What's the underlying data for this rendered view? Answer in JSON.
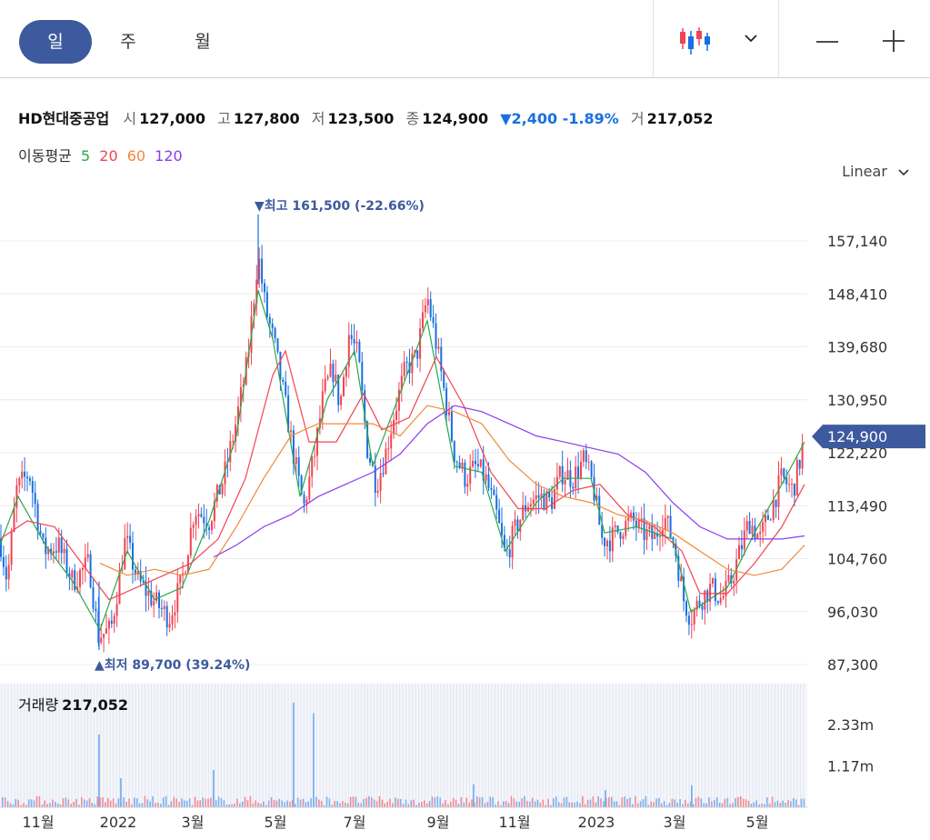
{
  "toolbar": {
    "tabs": [
      {
        "label": "일",
        "active": true
      },
      {
        "label": "주",
        "active": false
      },
      {
        "label": "월",
        "active": false
      }
    ],
    "chart_type_icon": "candlestick-icon",
    "dropdown_icon": "chevron-down-icon",
    "zoom_out_icon": "minus-icon",
    "zoom_in_icon": "plus-icon"
  },
  "quote": {
    "name": "HD현대중공업",
    "open_label": "시",
    "open": "127,000",
    "high_label": "고",
    "high": "127,800",
    "low_label": "저",
    "low": "123,500",
    "close_label": "종",
    "close": "124,900",
    "change": "▼2,400 -1.89%",
    "volume_label": "거",
    "volume": "217,052"
  },
  "moving_average": {
    "label": "이동평균",
    "periods": [
      {
        "label": "5",
        "color": "#2aa84a"
      },
      {
        "label": "20",
        "color": "#f04452"
      },
      {
        "label": "60",
        "color": "#f0883a"
      },
      {
        "label": "120",
        "color": "#8b3cf0"
      }
    ]
  },
  "scale_mode": "Linear",
  "colors": {
    "up": "#f04452",
    "down": "#1a6fe0",
    "accent": "#3d5a9e",
    "grid": "#ececec"
  },
  "chart_data": {
    "type": "candlestick",
    "y_ticks": [
      "157,140",
      "148,410",
      "139,680",
      "130,950",
      "122,220",
      "113,490",
      "104,760",
      "96,030",
      "87,300"
    ],
    "y_tick_values": [
      157140,
      148410,
      139680,
      130950,
      122220,
      113490,
      104760,
      96030,
      87300
    ],
    "ylim": [
      84000,
      168000
    ],
    "x_ticks": [
      "11월",
      "2022",
      "3월",
      "5월",
      "7월",
      "9월",
      "11월",
      "2023",
      "3월",
      "5월"
    ],
    "current_price_label": "124,900",
    "current_price": 124900,
    "high_annotation": "▼최고 161,500 (-22.66%)",
    "high_value": 161500,
    "low_annotation": "▲최저 89,700 (39.24%)",
    "low_value": 89700,
    "price_path": [
      [
        0,
        108000
      ],
      [
        8,
        101000
      ],
      [
        18,
        116000
      ],
      [
        32,
        119000
      ],
      [
        48,
        106000
      ],
      [
        64,
        107000
      ],
      [
        80,
        101000
      ],
      [
        98,
        104000
      ],
      [
        108,
        92000
      ],
      [
        122,
        93000
      ],
      [
        138,
        108000
      ],
      [
        152,
        101000
      ],
      [
        168,
        98000
      ],
      [
        186,
        95000
      ],
      [
        200,
        101000
      ],
      [
        214,
        113000
      ],
      [
        230,
        111000
      ],
      [
        246,
        118000
      ],
      [
        258,
        126000
      ],
      [
        272,
        137000
      ],
      [
        284,
        155000
      ],
      [
        292,
        146000
      ],
      [
        302,
        140000
      ],
      [
        314,
        130000
      ],
      [
        324,
        121000
      ],
      [
        334,
        113000
      ],
      [
        346,
        122000
      ],
      [
        356,
        132000
      ],
      [
        366,
        136000
      ],
      [
        374,
        130000
      ],
      [
        384,
        142000
      ],
      [
        394,
        138000
      ],
      [
        404,
        123000
      ],
      [
        414,
        117000
      ],
      [
        424,
        122000
      ],
      [
        434,
        129000
      ],
      [
        446,
        136000
      ],
      [
        458,
        138000
      ],
      [
        470,
        148000
      ],
      [
        480,
        140000
      ],
      [
        490,
        131000
      ],
      [
        500,
        122000
      ],
      [
        512,
        118000
      ],
      [
        524,
        120000
      ],
      [
        534,
        118000
      ],
      [
        546,
        112000
      ],
      [
        556,
        105000
      ],
      [
        568,
        110000
      ],
      [
        580,
        114000
      ],
      [
        594,
        115000
      ],
      [
        606,
        114000
      ],
      [
        618,
        119000
      ],
      [
        630,
        118000
      ],
      [
        642,
        121000
      ],
      [
        652,
        117000
      ],
      [
        662,
        108000
      ],
      [
        672,
        108000
      ],
      [
        684,
        110000
      ],
      [
        696,
        111000
      ],
      [
        708,
        109000
      ],
      [
        720,
        108000
      ],
      [
        730,
        112000
      ],
      [
        742,
        107000
      ],
      [
        752,
        98000
      ],
      [
        760,
        95000
      ],
      [
        770,
        98000
      ],
      [
        782,
        100000
      ],
      [
        794,
        98000
      ],
      [
        804,
        101000
      ],
      [
        814,
        106000
      ],
      [
        824,
        111000
      ],
      [
        836,
        108000
      ],
      [
        848,
        113000
      ],
      [
        860,
        118000
      ],
      [
        872,
        116000
      ],
      [
        880,
        121000
      ],
      [
        885,
        124900
      ]
    ],
    "ma5_path": [
      [
        0,
        107000
      ],
      [
        20,
        115000
      ],
      [
        50,
        107000
      ],
      [
        80,
        101000
      ],
      [
        110,
        93000
      ],
      [
        140,
        106000
      ],
      [
        170,
        98000
      ],
      [
        200,
        100000
      ],
      [
        230,
        111000
      ],
      [
        260,
        125000
      ],
      [
        284,
        149000
      ],
      [
        300,
        141000
      ],
      [
        330,
        115000
      ],
      [
        360,
        131000
      ],
      [
        390,
        139000
      ],
      [
        410,
        120000
      ],
      [
        440,
        132000
      ],
      [
        470,
        144000
      ],
      [
        500,
        120000
      ],
      [
        530,
        119000
      ],
      [
        556,
        106000
      ],
      [
        590,
        114000
      ],
      [
        620,
        118000
      ],
      [
        650,
        118000
      ],
      [
        665,
        109000
      ],
      [
        700,
        110000
      ],
      [
        740,
        108000
      ],
      [
        760,
        96000
      ],
      [
        800,
        100000
      ],
      [
        830,
        109000
      ],
      [
        860,
        117000
      ],
      [
        885,
        124000
      ]
    ],
    "ma20_path": [
      [
        0,
        108000
      ],
      [
        30,
        111000
      ],
      [
        60,
        110000
      ],
      [
        90,
        104000
      ],
      [
        120,
        98000
      ],
      [
        150,
        100000
      ],
      [
        180,
        102000
      ],
      [
        210,
        104000
      ],
      [
        240,
        108000
      ],
      [
        270,
        118000
      ],
      [
        300,
        135000
      ],
      [
        314,
        139000
      ],
      [
        340,
        124000
      ],
      [
        370,
        124000
      ],
      [
        400,
        132000
      ],
      [
        420,
        126000
      ],
      [
        450,
        128000
      ],
      [
        480,
        138000
      ],
      [
        510,
        130000
      ],
      [
        540,
        119000
      ],
      [
        570,
        113000
      ],
      [
        600,
        113000
      ],
      [
        630,
        116000
      ],
      [
        660,
        117000
      ],
      [
        690,
        112000
      ],
      [
        720,
        110000
      ],
      [
        750,
        106000
      ],
      [
        770,
        99000
      ],
      [
        800,
        99000
      ],
      [
        830,
        104000
      ],
      [
        860,
        110000
      ],
      [
        885,
        117000
      ]
    ],
    "ma60_path": [
      [
        110,
        104000
      ],
      [
        140,
        102000
      ],
      [
        170,
        103000
      ],
      [
        200,
        102000
      ],
      [
        230,
        103000
      ],
      [
        260,
        110000
      ],
      [
        290,
        118000
      ],
      [
        320,
        125000
      ],
      [
        350,
        127000
      ],
      [
        380,
        127000
      ],
      [
        410,
        127000
      ],
      [
        440,
        125000
      ],
      [
        470,
        130000
      ],
      [
        500,
        129000
      ],
      [
        530,
        127000
      ],
      [
        560,
        121000
      ],
      [
        590,
        117000
      ],
      [
        620,
        115000
      ],
      [
        650,
        114000
      ],
      [
        680,
        112000
      ],
      [
        710,
        111000
      ],
      [
        740,
        109000
      ],
      [
        770,
        106000
      ],
      [
        800,
        103000
      ],
      [
        830,
        102000
      ],
      [
        860,
        103000
      ],
      [
        885,
        107000
      ]
    ],
    "ma120_path": [
      [
        235,
        105000
      ],
      [
        260,
        107000
      ],
      [
        290,
        110000
      ],
      [
        320,
        112000
      ],
      [
        350,
        115000
      ],
      [
        380,
        117000
      ],
      [
        410,
        119000
      ],
      [
        440,
        122000
      ],
      [
        470,
        127000
      ],
      [
        500,
        130000
      ],
      [
        530,
        129000
      ],
      [
        560,
        127000
      ],
      [
        590,
        125000
      ],
      [
        620,
        124000
      ],
      [
        650,
        123000
      ],
      [
        680,
        122000
      ],
      [
        710,
        119000
      ],
      [
        740,
        114000
      ],
      [
        770,
        110000
      ],
      [
        800,
        108000
      ],
      [
        830,
        108000
      ],
      [
        860,
        108000
      ],
      [
        885,
        108500
      ]
    ],
    "volume": {
      "label": "거래량",
      "value": "217,052",
      "y_ticks": [
        "2.33m",
        "1.17m"
      ],
      "y_tick_values": [
        2330000,
        1170000
      ],
      "max": 3000000,
      "spikes": [
        {
          "x": 108,
          "value": 2050000
        },
        {
          "x": 322,
          "value": 2950000
        },
        {
          "x": 344,
          "value": 2650000
        },
        {
          "x": 234,
          "value": 1050000
        },
        {
          "x": 132,
          "value": 820000
        },
        {
          "x": 520,
          "value": 650000
        },
        {
          "x": 760,
          "value": 620000
        },
        {
          "x": 665,
          "value": 480000
        }
      ]
    }
  }
}
